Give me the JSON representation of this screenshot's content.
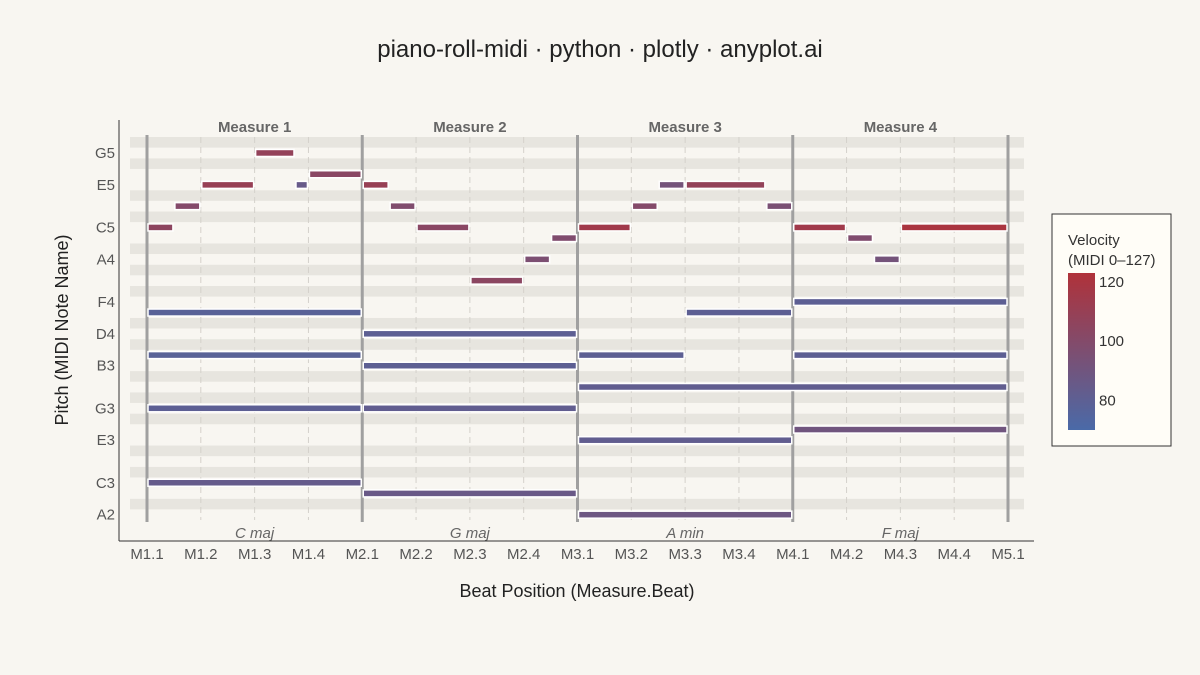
{
  "chart_data": {
    "type": "piano-roll",
    "title": "piano-roll-midi · python · plotly · anyplot.ai",
    "xlabel": "Beat Position (Measure.Beat)",
    "ylabel": "Pitch (MIDI Note Name)",
    "xlim": [
      0,
      16
    ],
    "ylim": [
      44.5,
      80.5
    ],
    "x_ticks": [
      "M1.1",
      "M1.2",
      "M1.3",
      "M1.4",
      "M2.1",
      "M2.2",
      "M2.3",
      "M2.4",
      "M3.1",
      "M3.2",
      "M3.3",
      "M3.4",
      "M4.1",
      "M4.2",
      "M4.3",
      "M4.4",
      "M5.1"
    ],
    "y_ticks": [
      {
        "label": "A2",
        "pitch": 45
      },
      {
        "label": "C3",
        "pitch": 48
      },
      {
        "label": "E3",
        "pitch": 52
      },
      {
        "label": "G3",
        "pitch": 55
      },
      {
        "label": "B3",
        "pitch": 59
      },
      {
        "label": "D4",
        "pitch": 62
      },
      {
        "label": "F4",
        "pitch": 65
      },
      {
        "label": "A4",
        "pitch": 69
      },
      {
        "label": "C5",
        "pitch": 72
      },
      {
        "label": "E5",
        "pitch": 76
      },
      {
        "label": "G5",
        "pitch": 79
      }
    ],
    "measures": [
      "Measure 1",
      "Measure 2",
      "Measure 3",
      "Measure 4"
    ],
    "chords": [
      "C maj",
      "G maj",
      "A min",
      "F maj"
    ],
    "colorbar": {
      "title": "Velocity\n(MIDI 0–127)",
      "ticks": [
        80,
        100,
        120
      ],
      "range": [
        70,
        123
      ],
      "low_color": "#4a6aa8",
      "high_color": "#b0323a"
    },
    "grid": true,
    "notes": [
      {
        "pitch": 72,
        "start": 0,
        "dur": 0.5,
        "vel": 105
      },
      {
        "pitch": 74,
        "start": 0.5,
        "dur": 0.5,
        "vel": 100
      },
      {
        "pitch": 76,
        "start": 1,
        "dur": 1,
        "vel": 110
      },
      {
        "pitch": 79,
        "start": 2,
        "dur": 0.75,
        "vel": 108
      },
      {
        "pitch": 76,
        "start": 2.75,
        "dur": 0.25,
        "vel": 85
      },
      {
        "pitch": 77,
        "start": 3,
        "dur": 1,
        "vel": 103
      },
      {
        "pitch": 76,
        "start": 4,
        "dur": 0.5,
        "vel": 110
      },
      {
        "pitch": 74,
        "start": 4.5,
        "dur": 0.5,
        "vel": 98
      },
      {
        "pitch": 72,
        "start": 5,
        "dur": 1,
        "vel": 103
      },
      {
        "pitch": 67,
        "start": 6,
        "dur": 1,
        "vel": 104
      },
      {
        "pitch": 69,
        "start": 7,
        "dur": 0.5,
        "vel": 96
      },
      {
        "pitch": 71,
        "start": 7.5,
        "dur": 0.5,
        "vel": 98
      },
      {
        "pitch": 72,
        "start": 8,
        "dur": 1,
        "vel": 115
      },
      {
        "pitch": 74,
        "start": 9,
        "dur": 0.5,
        "vel": 100
      },
      {
        "pitch": 76,
        "start": 9.5,
        "dur": 0.5,
        "vel": 92
      },
      {
        "pitch": 76,
        "start": 10,
        "dur": 1.5,
        "vel": 108
      },
      {
        "pitch": 74,
        "start": 11.5,
        "dur": 0.5,
        "vel": 95
      },
      {
        "pitch": 72,
        "start": 12,
        "dur": 1,
        "vel": 115
      },
      {
        "pitch": 71,
        "start": 13,
        "dur": 0.5,
        "vel": 98
      },
      {
        "pitch": 69,
        "start": 13.5,
        "dur": 0.5,
        "vel": 92
      },
      {
        "pitch": 72,
        "start": 14,
        "dur": 2,
        "vel": 120
      },
      {
        "pitch": 64,
        "start": 0,
        "dur": 4,
        "vel": 78
      },
      {
        "pitch": 60,
        "start": 0,
        "dur": 4,
        "vel": 78
      },
      {
        "pitch": 55,
        "start": 0,
        "dur": 4,
        "vel": 80
      },
      {
        "pitch": 48,
        "start": 0,
        "dur": 4,
        "vel": 84
      },
      {
        "pitch": 62,
        "start": 4,
        "dur": 4,
        "vel": 80
      },
      {
        "pitch": 59,
        "start": 4,
        "dur": 4,
        "vel": 80
      },
      {
        "pitch": 55,
        "start": 4,
        "dur": 4,
        "vel": 82
      },
      {
        "pitch": 47,
        "start": 4,
        "dur": 4,
        "vel": 86
      },
      {
        "pitch": 60,
        "start": 8,
        "dur": 2,
        "vel": 80
      },
      {
        "pitch": 64,
        "start": 10,
        "dur": 2,
        "vel": 80
      },
      {
        "pitch": 57,
        "start": 8,
        "dur": 8,
        "vel": 82
      },
      {
        "pitch": 52,
        "start": 8,
        "dur": 4,
        "vel": 82
      },
      {
        "pitch": 45,
        "start": 8,
        "dur": 4,
        "vel": 88
      },
      {
        "pitch": 65,
        "start": 12,
        "dur": 4,
        "vel": 80
      },
      {
        "pitch": 60,
        "start": 12,
        "dur": 4,
        "vel": 80
      },
      {
        "pitch": 53,
        "start": 12,
        "dur": 4,
        "vel": 90
      }
    ]
  }
}
